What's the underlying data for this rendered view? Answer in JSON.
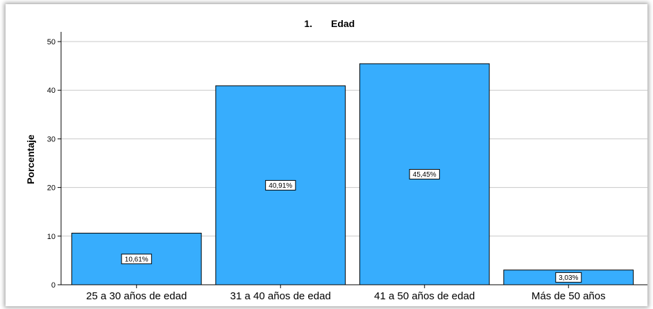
{
  "chart_data": {
    "type": "bar",
    "title_number": "1.",
    "title": "Edad",
    "xlabel": "",
    "ylabel": "Porcentaje",
    "categories": [
      "25 a 30 años de edad",
      "31 a 40 años de edad",
      "41 a 50 años de edad",
      "Más de 50 años"
    ],
    "values": [
      10.61,
      40.91,
      45.45,
      3.03
    ],
    "data_labels": [
      "10,61%",
      "40,91%",
      "45,45%",
      "3,03%"
    ],
    "ylim": [
      0,
      52
    ],
    "yticks": [
      0,
      10,
      20,
      30,
      40,
      50
    ],
    "grid": true,
    "legend": "none",
    "colors": {
      "bar_fill": "#37adfd",
      "bar_stroke": "#000000",
      "grid": "#c8c8c8",
      "axis": "#000000"
    }
  }
}
